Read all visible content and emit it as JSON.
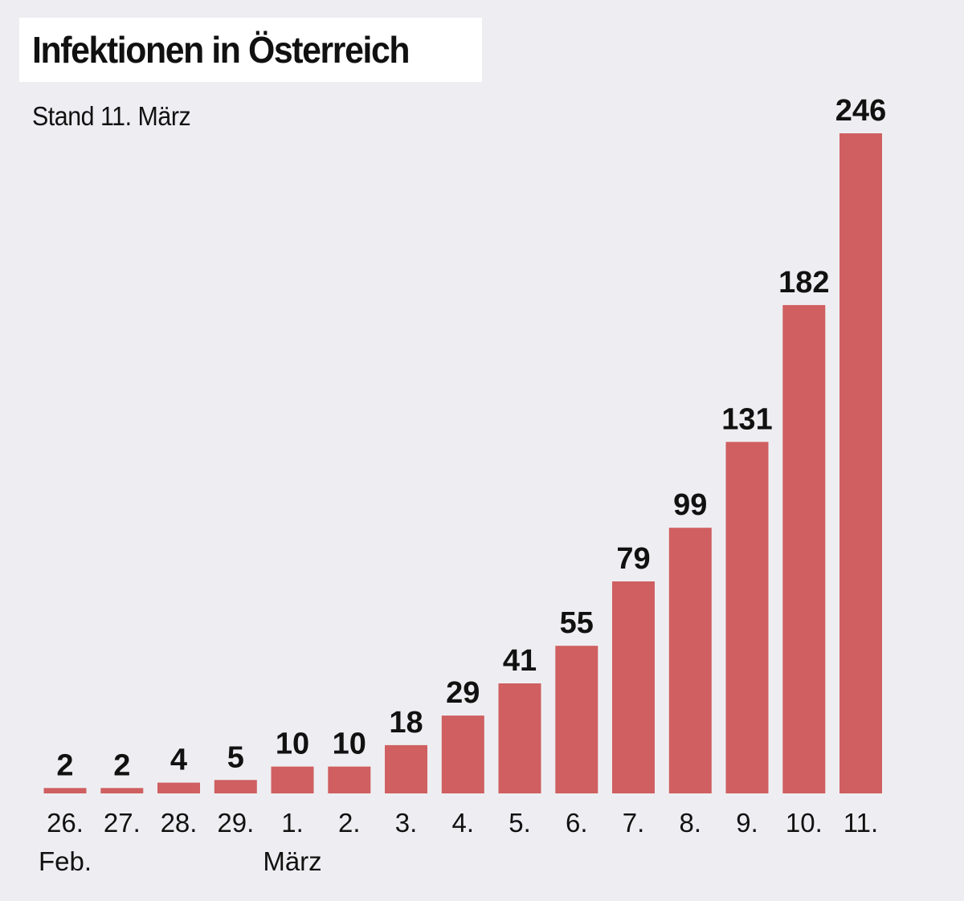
{
  "header": {
    "title": "Infektionen in Österreich",
    "subtitle": "Stand 11. März"
  },
  "colors": {
    "background": "#eeeef2",
    "bar": "#cf5f60",
    "title_box": "#ffffff",
    "text": "#111111"
  },
  "chart_data": {
    "type": "bar",
    "title": "Infektionen in Österreich",
    "subtitle": "Stand 11. März",
    "xlabel": "",
    "ylabel": "",
    "categories": [
      "26.",
      "27.",
      "28.",
      "29.",
      "1.",
      "2.",
      "3.",
      "4.",
      "5.",
      "6.",
      "7.",
      "8.",
      "9.",
      "10.",
      "11."
    ],
    "values": [
      2,
      2,
      4,
      5,
      10,
      10,
      18,
      29,
      41,
      55,
      79,
      99,
      131,
      182,
      246
    ],
    "value_labels": [
      "2",
      "2",
      "4",
      "5",
      "10",
      "10",
      "18",
      "29",
      "41",
      "55",
      "79",
      "99",
      "131",
      "182",
      "246"
    ],
    "month_labels": [
      {
        "category_index": 0,
        "text": "Feb."
      },
      {
        "category_index": 4,
        "text": "März"
      }
    ],
    "ylim": [
      0,
      246
    ],
    "grid": false,
    "legend": "none"
  }
}
